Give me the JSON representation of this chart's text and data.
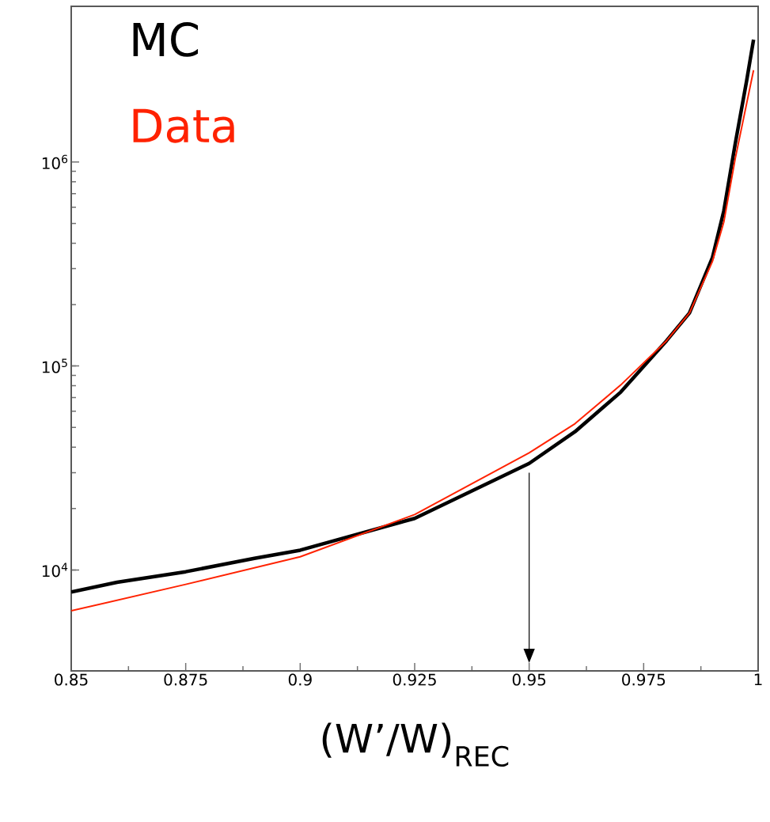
{
  "chart_data": {
    "type": "line",
    "xlabel": "(W’/W)$_{REC}$",
    "log": "y",
    "legend": "top left",
    "marker": "none",
    "line_style": "solid",
    "grid": false,
    "xlim": [
      0.85,
      1
    ],
    "xticks": [
      0.85,
      0.875,
      0.9,
      0.925,
      0.95,
      0.975,
      1
    ],
    "ylim": [
      3200,
      5800000
    ],
    "yticks": [
      {
        "value": 10000,
        "label": "10$^{4}$"
      },
      {
        "value": 100000,
        "label": "10$^{5}$"
      },
      {
        "value": 1000000,
        "label": "10$^{6}$"
      }
    ],
    "ref_lines": [
      {
        "axis": "x",
        "value": 0.95
      }
    ],
    "series": [
      {
        "name": "MC",
        "color": "#000000",
        "x": [
          0.85,
          0.86,
          0.875,
          0.89,
          0.9,
          0.925,
          0.95,
          0.96,
          0.97,
          0.98,
          0.985,
          0.99,
          0.9925,
          0.995,
          0.9975,
          0.999
        ],
        "values": [
          7800,
          8700,
          9800,
          11400,
          12500,
          17900,
          33300,
          47600,
          74500,
          133000,
          182000,
          339000,
          575000,
          1230000,
          2510000,
          3980000
        ]
      },
      {
        "name": "Data",
        "color": "#ff2200",
        "x": [
          0.85,
          0.875,
          0.9,
          0.925,
          0.95,
          0.96,
          0.97,
          0.98,
          0.985,
          0.99,
          0.9925,
          0.995,
          0.9975,
          0.999
        ],
        "values": [
          6300,
          8500,
          11600,
          18700,
          37500,
          52100,
          80700,
          133000,
          182000,
          325000,
          507000,
          1040000,
          1940000,
          2820000
        ]
      }
    ]
  }
}
